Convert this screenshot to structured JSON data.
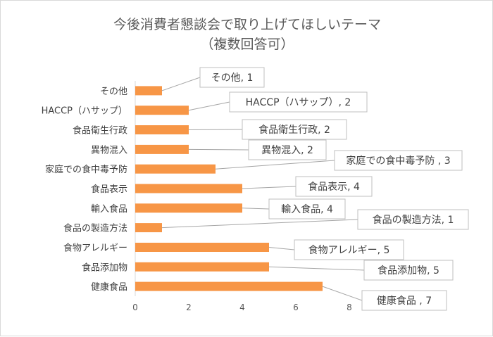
{
  "chart_data": {
    "type": "bar",
    "orientation": "horizontal",
    "title_lines": [
      "今後消費者懇談会で取り上げてほしいテーマ",
      "（複数回答可）"
    ],
    "categories": [
      "その他",
      "HACCP（ハサップ）",
      "食品衛生行政",
      "異物混入",
      "家庭での食中毒予防",
      "食品表示",
      "輸入食品",
      "食品の製造方法",
      "食物アレルギー",
      "食品添加物",
      "健康食品"
    ],
    "values": [
      1,
      2,
      2,
      2,
      3,
      4,
      4,
      1,
      5,
      5,
      7
    ],
    "data_labels": [
      "その他, 1",
      "HACCP（ハサップ）, 2",
      "食品衛生行政, 2",
      "異物混入, 2",
      "家庭での食中毒予防 , 3",
      "食品表示, 4",
      "輸入食品, 4",
      "食品の製造方法, 1",
      "食物アレルギー, 5",
      "食品添加物, 5",
      "健康食品 , 7"
    ],
    "xlim": [
      0,
      8
    ],
    "xticks": [
      0,
      2,
      4,
      6,
      8
    ],
    "grid": false,
    "legend": "none",
    "bar_color": "#F79646"
  }
}
